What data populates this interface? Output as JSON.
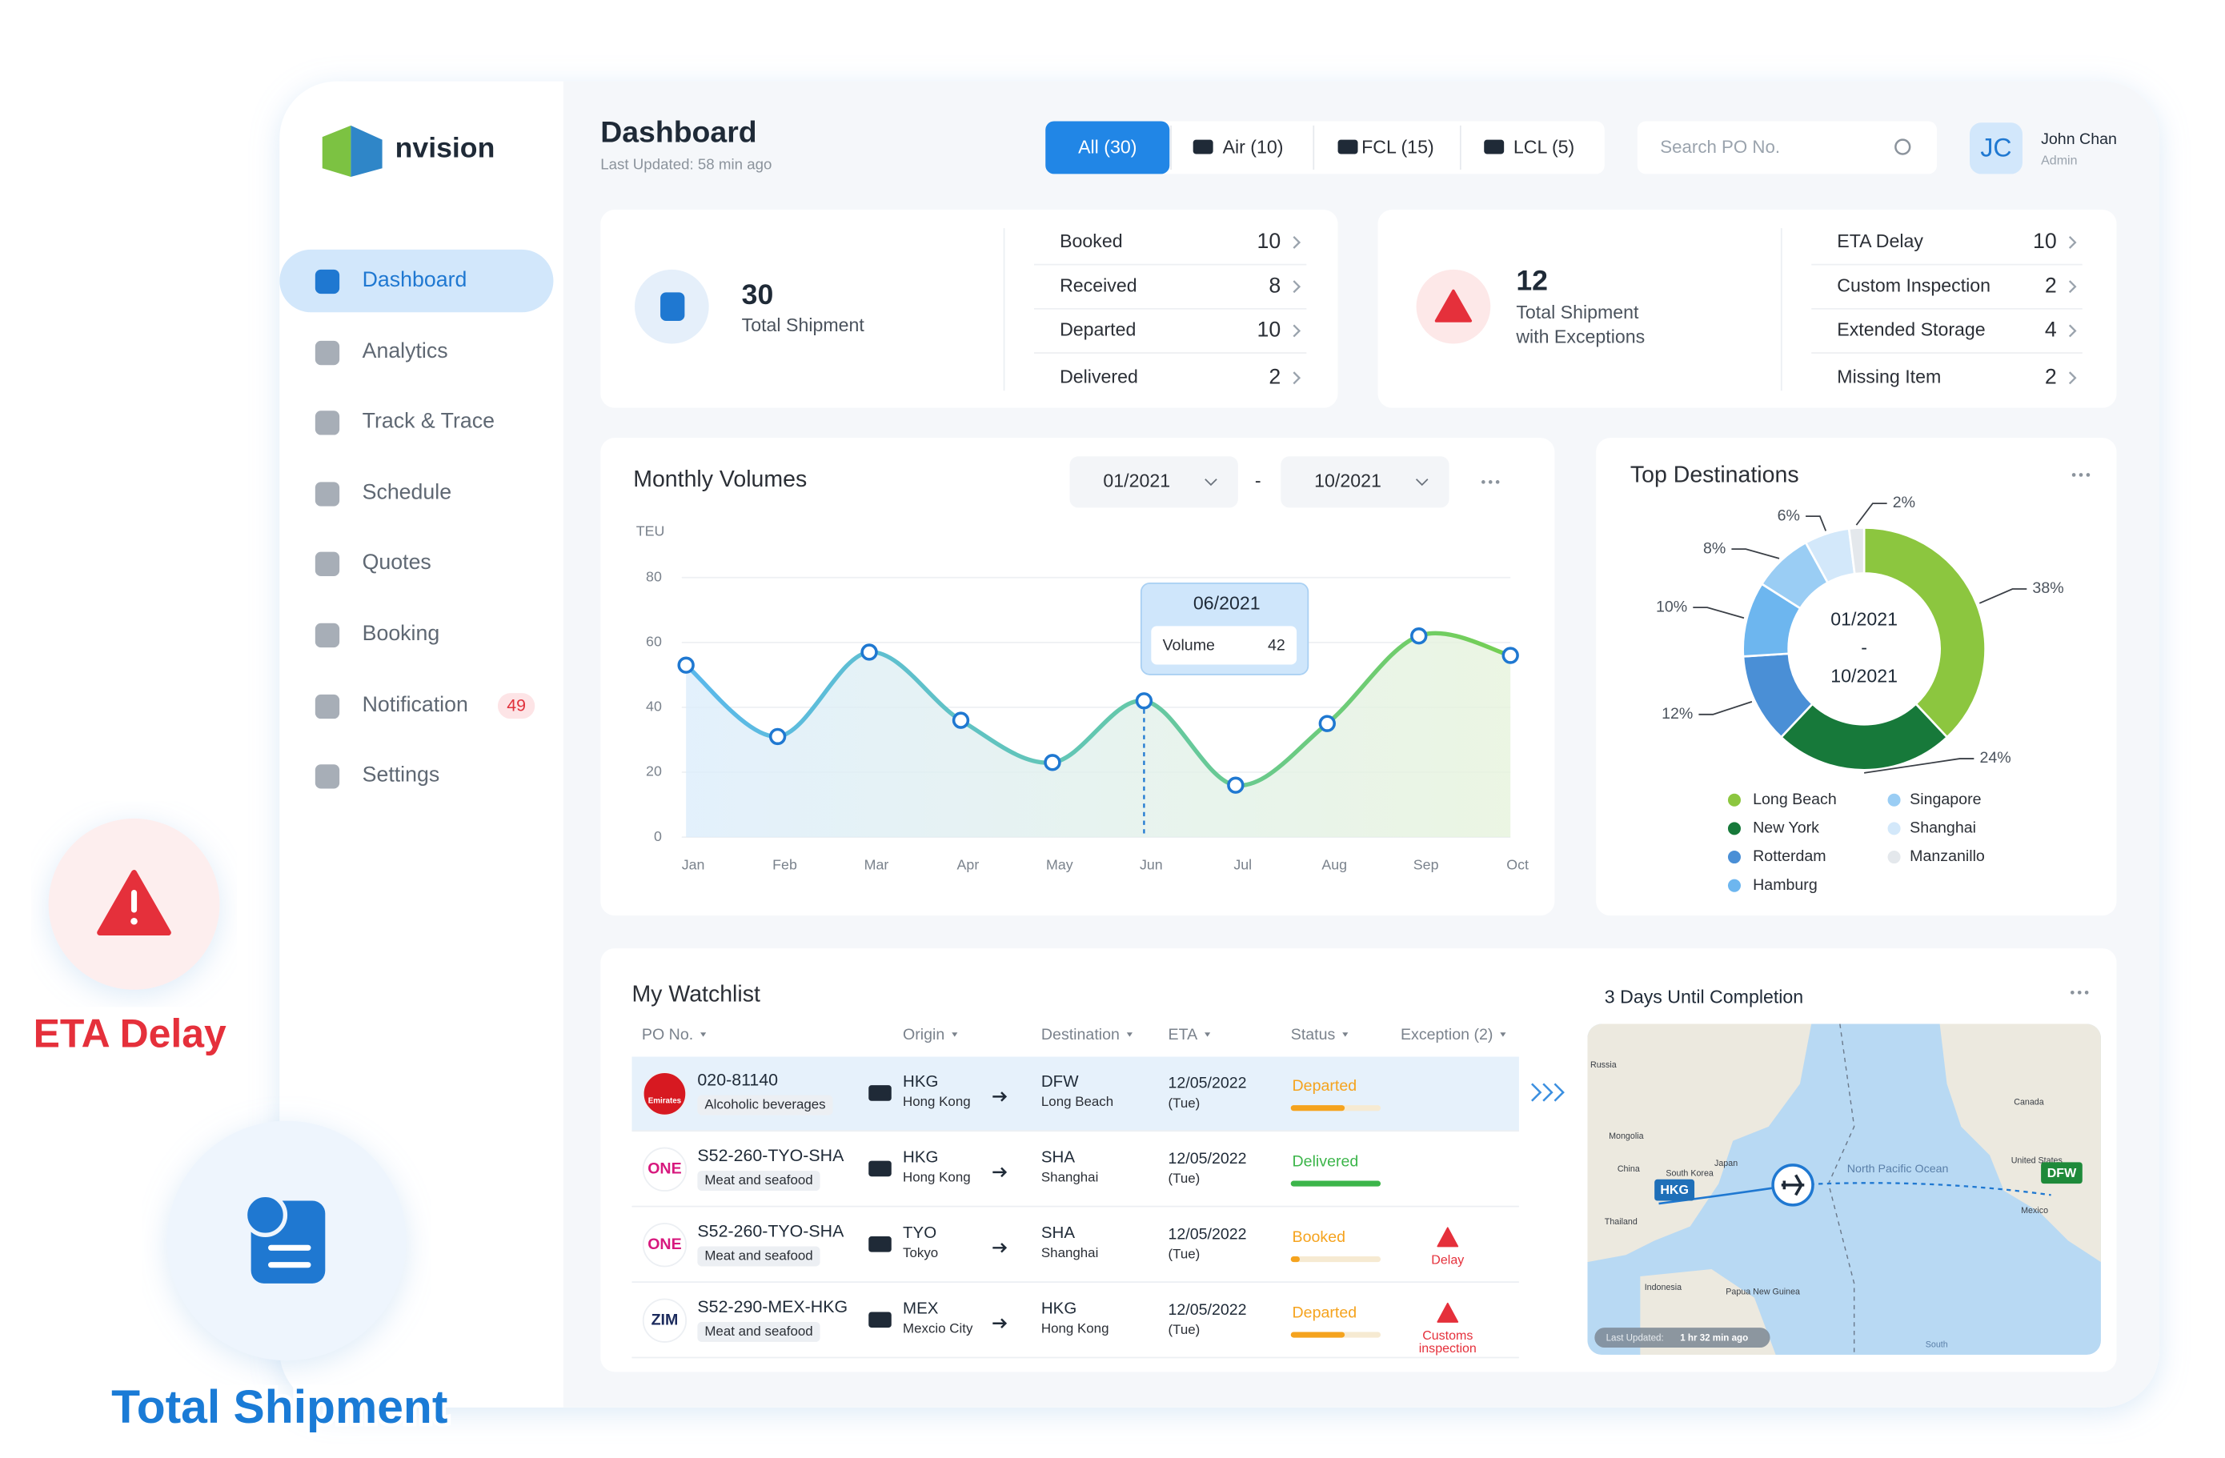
{
  "brand": "nvision",
  "nav": [
    "Dashboard",
    "Analytics",
    "Track & Trace",
    "Schedule",
    "Quotes",
    "Booking",
    "Notification",
    "Settings"
  ],
  "notification_badge": 49,
  "header": {
    "title": "Dashboard",
    "last_updated": "Last Updated: 58 min ago",
    "tabs": [
      "All (30)",
      "Air (10)",
      "FCL (15)",
      "LCL (5)"
    ],
    "search_placeholder": "Search PO No.",
    "user": {
      "initials": "JC",
      "name": "John Chan",
      "role": "Admin"
    }
  },
  "shipments": {
    "total": 30,
    "label_lines": [
      "Total Shipment"
    ],
    "breakdown": [
      {
        "label": "Booked",
        "value": 10
      },
      {
        "label": "Received",
        "value": 8
      },
      {
        "label": "Departed",
        "value": 10
      },
      {
        "label": "Delivered",
        "value": 2
      }
    ]
  },
  "exceptions": {
    "total": 12,
    "label_lines": [
      "Total Shipment",
      "with Exceptions"
    ],
    "breakdown": [
      {
        "label": "ETA Delay",
        "value": 10
      },
      {
        "label": "Custom Inspection",
        "value": 2
      },
      {
        "label": "Extended Storage",
        "value": 4
      },
      {
        "label": "Missing Item",
        "value": 2
      }
    ]
  },
  "monthly_volumes": {
    "type": "line",
    "title": "Monthly Volumes",
    "range_from": "01/2021",
    "range_separator": "-",
    "range_to": "10/2021",
    "y_label": "TEU",
    "categories": [
      "Jan",
      "Feb",
      "Mar",
      "Apr",
      "May",
      "Jun",
      "Jul",
      "Aug",
      "Sep",
      "Oct"
    ],
    "values": [
      53,
      31,
      57,
      36,
      23,
      42,
      16,
      35,
      62,
      56
    ],
    "ylim": [
      0,
      80
    ],
    "yticks": [
      0,
      20,
      40,
      60,
      80
    ],
    "grid": true,
    "tooltip": {
      "title": "06/2021",
      "label": "Volume",
      "value": 42
    }
  },
  "top_destinations": {
    "type": "pie",
    "title": "Top Destinations",
    "center_lines": [
      "01/2021",
      "-",
      "10/2021"
    ],
    "categories": [
      "Long Beach",
      "New York",
      "Rotterdam",
      "Hamburg",
      "Singapore",
      "Shanghai",
      "Manzanillo"
    ],
    "values": [
      38,
      24,
      12,
      10,
      8,
      6,
      2
    ],
    "value_labels": [
      "38%",
      "24%",
      "12%",
      "10%",
      "8%",
      "6%",
      "2%"
    ],
    "colors": [
      "#8cc63f",
      "#17793a",
      "#4a8fd6",
      "#6db6ef",
      "#9acdf4",
      "#d3e8fa",
      "#e4e8ec"
    ]
  },
  "watchlist": {
    "title": "My Watchlist",
    "columns": [
      "PO No.",
      "Origin",
      "Destination",
      "ETA",
      "Status",
      "Exception (2)"
    ],
    "rows": [
      {
        "carrier": "Emirates",
        "po": "020-81140",
        "cargo": "Alcoholic beverages",
        "origin_code": "HKG",
        "origin_city": "Hong Kong",
        "destination_code": "DFW",
        "destination_city": "Long Beach",
        "eta_date": "12/05/2022",
        "eta_day": "(Tue)",
        "status": "Departed"
      },
      {
        "carrier": "ONE",
        "po": "S52-260-TYO-SHA",
        "cargo": "Meat and seafood",
        "origin_code": "HKG",
        "origin_city": "Hong Kong",
        "destination_code": "SHA",
        "destination_city": "Shanghai",
        "eta_date": "12/05/2022",
        "eta_day": "(Tue)",
        "status": "Delivered"
      },
      {
        "carrier": "ONE",
        "po": "S52-260-TYO-SHA",
        "cargo": "Meat and seafood",
        "origin_code": "TYO",
        "origin_city": "Tokyo",
        "destination_code": "SHA",
        "destination_city": "Shanghai",
        "eta_date": "12/05/2022",
        "eta_day": "(Tue)",
        "status": "Booked",
        "exception": [
          "Delay"
        ]
      },
      {
        "carrier": "ZIM",
        "po": "S52-290-MEX-HKG",
        "cargo": "Meat and seafood",
        "origin_code": "MEX",
        "origin_city": "Mexcio City",
        "destination_code": "HKG",
        "destination_city": "Hong Kong",
        "eta_date": "12/05/2022",
        "eta_day": "(Tue)",
        "status": "Departed",
        "exception": [
          "Customs",
          "inspection"
        ]
      }
    ]
  },
  "map": {
    "title": "3 Days Until Completion",
    "origin": "HKG",
    "destination": "DFW",
    "labels": [
      "Russia",
      "Mongolia",
      "China",
      "Japan",
      "South Korea",
      "Thailand",
      "Indonesia",
      "Papua New Guinea",
      "North Pacific Ocean",
      "Canada",
      "United States",
      "Mexico",
      "South"
    ],
    "last_updated_label": "Last Updated:",
    "last_updated_value": "1 hr 32 min ago"
  },
  "callouts": [
    "ETA Delay",
    "Total Shipment"
  ]
}
